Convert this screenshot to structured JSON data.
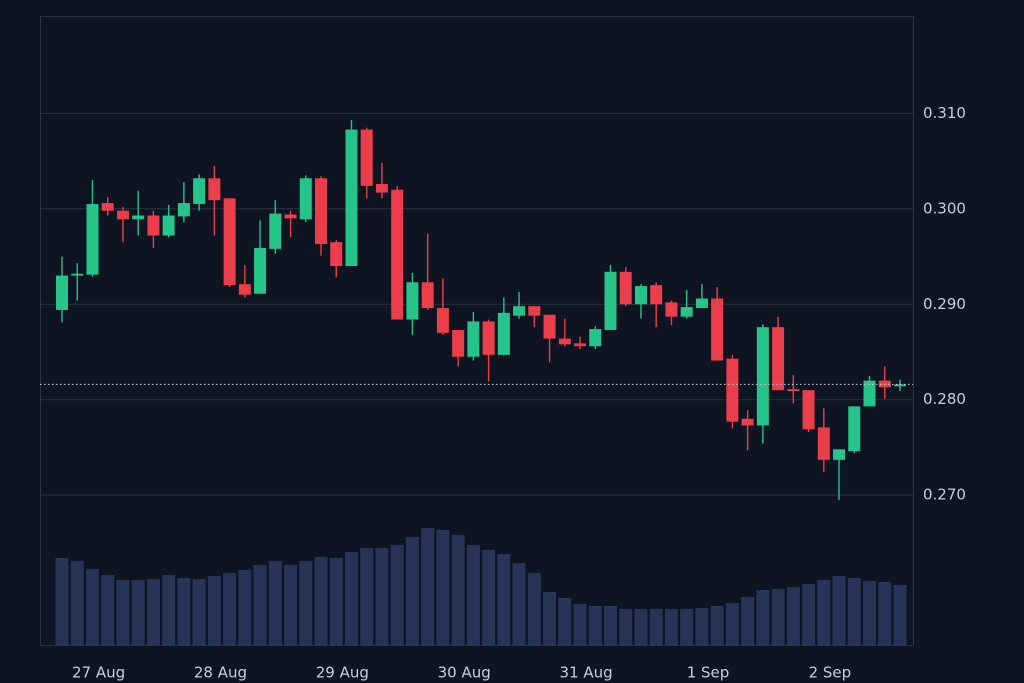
{
  "chart_data": {
    "type": "candlestick",
    "categories": [
      null,
      null,
      null,
      null,
      null,
      null,
      null,
      null,
      null,
      null,
      null,
      null,
      null,
      null,
      null,
      null,
      null,
      null,
      null,
      null,
      null,
      null,
      null,
      null,
      null,
      null,
      null,
      null,
      null,
      null,
      null,
      null,
      null,
      null,
      null,
      null,
      null,
      null,
      null,
      null,
      null,
      null,
      null,
      null,
      null,
      null,
      null,
      null,
      null,
      null,
      null,
      null,
      null,
      null,
      null,
      null
    ],
    "open": [
      0.2894,
      0.293,
      0.2931,
      0.3006,
      0.2998,
      0.2989,
      0.2993,
      0.2972,
      0.2992,
      0.3005,
      0.3032,
      0.3011,
      0.2921,
      0.2911,
      0.2958,
      0.2994,
      0.2989,
      0.3032,
      0.2965,
      0.294,
      0.3083,
      0.3026,
      0.302,
      0.2884,
      0.2923,
      0.2896,
      0.2873,
      0.2845,
      0.2882,
      0.2847,
      0.2888,
      0.2898,
      0.2889,
      0.2864,
      0.2859,
      0.2856,
      0.2873,
      0.2934,
      0.29,
      0.292,
      0.2902,
      0.2887,
      0.2896,
      0.2906,
      0.2843,
      0.278,
      0.2773,
      0.2876,
      0.2811,
      0.281,
      0.2771,
      0.2737,
      0.2746,
      0.2793,
      0.282,
      0.2814
    ],
    "high": [
      0.295,
      0.2943,
      0.303,
      0.3012,
      0.3002,
      0.3019,
      0.2998,
      0.3004,
      0.3028,
      0.3036,
      0.3045,
      0.3011,
      0.2941,
      0.2988,
      0.3009,
      0.2998,
      0.3035,
      0.3034,
      0.2967,
      0.3093,
      0.3085,
      0.3048,
      0.3024,
      0.2933,
      0.2974,
      0.2927,
      0.2873,
      0.2892,
      0.2884,
      0.2907,
      0.2913,
      0.2898,
      0.2889,
      0.2885,
      0.2866,
      0.2877,
      0.2941,
      0.2939,
      0.2921,
      0.2923,
      0.2904,
      0.2915,
      0.2921,
      0.2918,
      0.2847,
      0.2789,
      0.2879,
      0.2887,
      0.2826,
      0.281,
      0.2791,
      0.2748,
      0.2793,
      0.2825,
      0.2835,
      0.2821
    ],
    "low": [
      0.2881,
      0.2904,
      0.2929,
      0.2993,
      0.2965,
      0.2972,
      0.2959,
      0.297,
      0.2986,
      0.2998,
      0.2972,
      0.2918,
      0.2907,
      0.2911,
      0.2953,
      0.297,
      0.2986,
      0.2951,
      0.2928,
      0.294,
      0.3011,
      0.3011,
      0.2884,
      0.2868,
      0.2894,
      0.2868,
      0.2835,
      0.2841,
      0.2819,
      0.2847,
      0.2885,
      0.2876,
      0.2839,
      0.2856,
      0.2853,
      0.2853,
      0.2873,
      0.2898,
      0.2885,
      0.2876,
      0.2878,
      0.2885,
      0.2896,
      0.2841,
      0.277,
      0.2747,
      0.2754,
      0.281,
      0.2796,
      0.2766,
      0.2724,
      0.2695,
      0.2744,
      0.2793,
      0.2801,
      0.2809
    ],
    "close": [
      0.293,
      0.2932,
      0.3005,
      0.2998,
      0.2989,
      0.2993,
      0.2972,
      0.2993,
      0.3006,
      0.3032,
      0.3009,
      0.292,
      0.291,
      0.2959,
      0.2995,
      0.299,
      0.3032,
      0.2963,
      0.294,
      0.3083,
      0.3024,
      0.3017,
      0.2884,
      0.2923,
      0.2896,
      0.287,
      0.2845,
      0.2882,
      0.2847,
      0.2891,
      0.2898,
      0.2888,
      0.2864,
      0.2858,
      0.2856,
      0.2874,
      0.2934,
      0.29,
      0.2919,
      0.29,
      0.2887,
      0.2897,
      0.2906,
      0.2841,
      0.2777,
      0.2773,
      0.2876,
      0.281,
      0.2809,
      0.2769,
      0.2737,
      0.2748,
      0.2793,
      0.282,
      0.2813,
      0.2816
    ],
    "volume": [
      87,
      84,
      76,
      70,
      65,
      65,
      66,
      70,
      67,
      66,
      69,
      72,
      75,
      80,
      84,
      80,
      84,
      88,
      87,
      93,
      97,
      97,
      100,
      108,
      117,
      115,
      110,
      100,
      95,
      91,
      82,
      72,
      53,
      47,
      41,
      39,
      39,
      36,
      36,
      36,
      36,
      36,
      37,
      39,
      42,
      48,
      55,
      56,
      58,
      61,
      65,
      69,
      67,
      64,
      63,
      60
    ],
    "last_price": 0.2816,
    "ylim": [
      0.2543,
      0.3202
    ],
    "yticks": [
      {
        "value": 0.27,
        "label": "0.270"
      },
      {
        "value": 0.28,
        "label": "0.280"
      },
      {
        "value": 0.29,
        "label": "0.290"
      },
      {
        "value": 0.3,
        "label": "0.300"
      },
      {
        "value": 0.31,
        "label": "0.310"
      }
    ],
    "xticks": [
      {
        "value": 2.4,
        "label": "27 Aug"
      },
      {
        "value": 10.4,
        "label": "28 Aug"
      },
      {
        "value": 18.4,
        "label": "29 Aug"
      },
      {
        "value": 26.4,
        "label": "30 Aug"
      },
      {
        "value": 34.4,
        "label": "31 Aug"
      },
      {
        "value": 42.4,
        "label": "1 Sep"
      },
      {
        "value": 50.4,
        "label": "2 Sep"
      }
    ],
    "grid": true,
    "up_color": "#26c48a",
    "down_color": "#ea3f4b",
    "volume_color": "#283457"
  }
}
